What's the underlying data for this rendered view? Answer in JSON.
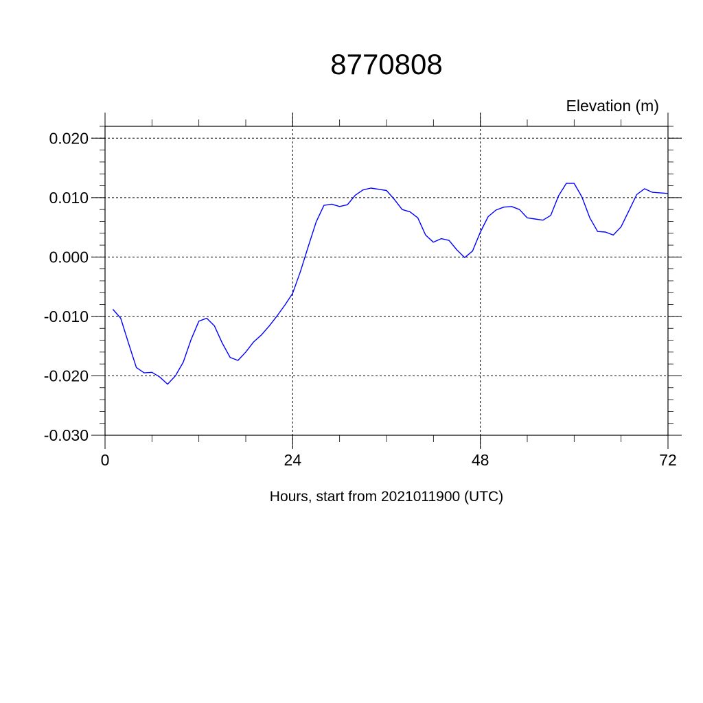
{
  "chart_data": {
    "type": "line",
    "title": "8770808",
    "ylabel": "Elevation (m)",
    "xlabel": "Hours, start from 2021011900 (UTC)",
    "xlim": [
      0,
      72
    ],
    "ylim": [
      -0.03,
      0.022
    ],
    "x_ticks": [
      0,
      24,
      48,
      72
    ],
    "x_tick_labels": [
      "0",
      "24",
      "48",
      "72"
    ],
    "y_ticks": [
      0.02,
      0.01,
      0.0,
      -0.01,
      -0.02,
      -0.03
    ],
    "y_tick_labels": [
      "0.020",
      "0.010",
      "0.000",
      "-0.010",
      "-0.020",
      "-0.030"
    ],
    "grid": true,
    "grid_style": "dashed",
    "line_color": "#0000ff",
    "series": [
      {
        "x": [
          1,
          2,
          3,
          4,
          5,
          6,
          7,
          8,
          9,
          10,
          11,
          12,
          13,
          14,
          15,
          16,
          17,
          18,
          19,
          20,
          21,
          22,
          23,
          24,
          25,
          26,
          27,
          28,
          29,
          30,
          31,
          32,
          33,
          34,
          35,
          36,
          37,
          38,
          39,
          40,
          41,
          42,
          43,
          44,
          45,
          46,
          47,
          48,
          49,
          50,
          51,
          52,
          53,
          54,
          55,
          56,
          57,
          58,
          59,
          60,
          61,
          62,
          63,
          64,
          65,
          66,
          67,
          68,
          69,
          70,
          71,
          72
        ],
        "y": [
          -0.0088,
          -0.0103,
          -0.0145,
          -0.0186,
          -0.0195,
          -0.0194,
          -0.0202,
          -0.0214,
          -0.02,
          -0.0177,
          -0.0139,
          -0.0108,
          -0.0103,
          -0.0116,
          -0.0145,
          -0.0169,
          -0.0174,
          -0.016,
          -0.0143,
          -0.0131,
          -0.0116,
          -0.0099,
          -0.0081,
          -0.0061,
          -0.0024,
          0.0018,
          0.0059,
          0.0087,
          0.0089,
          0.0085,
          0.0088,
          0.0104,
          0.0113,
          0.0116,
          0.0114,
          0.0112,
          0.0097,
          0.008,
          0.0076,
          0.0066,
          0.0037,
          0.0025,
          0.0031,
          0.0028,
          0.0012,
          -0.0001,
          0.001,
          0.0042,
          0.0068,
          0.0079,
          0.0084,
          0.0085,
          0.008,
          0.0066,
          0.0064,
          0.0062,
          0.007,
          0.0103,
          0.0124,
          0.0124,
          0.0101,
          0.0066,
          0.0043,
          0.0042,
          0.0037,
          0.0051,
          0.0078,
          0.0105,
          0.0115,
          0.0109,
          0.0108,
          0.0107
        ]
      }
    ]
  }
}
